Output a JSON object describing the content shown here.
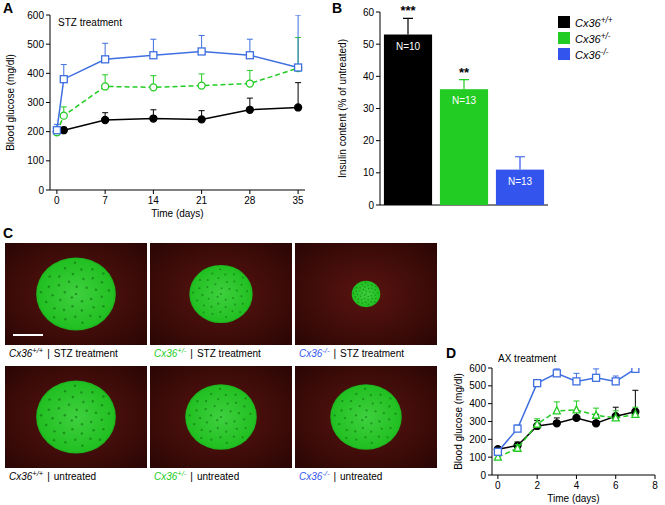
{
  "panel_labels": [
    "A",
    "B",
    "C",
    "D"
  ],
  "chart_data": [
    {
      "type": "line",
      "title": "STZ treatment",
      "x_label": "Time (days)",
      "y_label": "Blood glucose (mg/dl)",
      "x": [
        0,
        1,
        7,
        14,
        21,
        28,
        35
      ],
      "xlim": [
        -1,
        36
      ],
      "xticks": [
        0,
        7,
        14,
        21,
        28,
        35
      ],
      "ylim": [
        0,
        600
      ],
      "yticks": [
        0,
        100,
        200,
        300,
        400,
        500,
        600
      ],
      "series": [
        {
          "color": "#000000",
          "marker": "circle",
          "line_style": "solid",
          "values": [
            200,
            205,
            240,
            245,
            242,
            275,
            283
          ],
          "errors": [
            15,
            10,
            25,
            30,
            30,
            40,
            85
          ]
        },
        {
          "color": "#22cc22",
          "marker": "open-circle",
          "line_style": "dashed",
          "values": [
            198,
            255,
            355,
            352,
            358,
            365,
            418
          ],
          "errors": [
            20,
            30,
            40,
            40,
            40,
            45,
            105
          ]
        },
        {
          "color": "#3f6fe0",
          "marker": "open-square",
          "line_style": "solid",
          "values": [
            205,
            380,
            448,
            462,
            475,
            462,
            420
          ],
          "errors": [
            20,
            50,
            55,
            55,
            55,
            55,
            180
          ]
        }
      ]
    },
    {
      "type": "bar",
      "y_label": "Insulin content (% of untreated)",
      "categories": [
        "Cx36+/+",
        "Cx36+/-",
        "Cx36-/-"
      ],
      "values": [
        53,
        36,
        11
      ],
      "errors": [
        5,
        3,
        4
      ],
      "colors": [
        "#000000",
        "#22cc22",
        "#3355ee"
      ],
      "ylim": [
        0,
        60
      ],
      "yticks": [
        0,
        10,
        20,
        30,
        40,
        50,
        60
      ],
      "legend": "top-right",
      "tick_labels": "y",
      "n_labels": [
        "N=10",
        "N=13",
        "N=13"
      ],
      "significance": [
        "***",
        "**",
        null
      ]
    },
    {
      "type": "line",
      "title": "AX treatment",
      "x_label": "Time (days)",
      "y_label": "Blood glucose (mg/dl)",
      "x": [
        0,
        1,
        2,
        3,
        4,
        5,
        6,
        7
      ],
      "xlim": [
        -0.3,
        8
      ],
      "xticks": [
        0,
        2,
        4,
        6,
        8
      ],
      "ylim": [
        0,
        600
      ],
      "yticks": [
        0,
        100,
        200,
        300,
        400,
        500,
        600
      ],
      "series": [
        {
          "color": "#000000",
          "marker": "circle",
          "line_style": "solid",
          "values": [
            145,
            165,
            275,
            290,
            320,
            290,
            330,
            355
          ],
          "errors": [
            10,
            20,
            30,
            30,
            40,
            50,
            50,
            120
          ]
        },
        {
          "color": "#22cc22",
          "marker": "open-triangle",
          "line_style": "dashed",
          "values": [
            100,
            150,
            285,
            360,
            365,
            335,
            320,
            340
          ],
          "errors": [
            10,
            20,
            30,
            50,
            50,
            40,
            40,
            40
          ]
        },
        {
          "color": "#3f6fe0",
          "marker": "open-square",
          "line_style": "solid",
          "values": [
            130,
            260,
            515,
            570,
            525,
            545,
            525,
            595
          ],
          "errors": [
            15,
            20,
            20,
            25,
            45,
            50,
            30,
            5
          ]
        }
      ]
    }
  ],
  "micrographs": {
    "panels": [
      {
        "genotype": "Cx36+/+",
        "color": "#000000",
        "separator": "|",
        "treatment": "STZ treatment"
      },
      {
        "genotype": "Cx36+/-",
        "color": "#22cc22",
        "separator": "|",
        "treatment": "STZ treatment"
      },
      {
        "genotype": "Cx36-/-",
        "color": "#3355ee",
        "separator": "|",
        "treatment": "STZ treatment"
      },
      {
        "genotype": "Cx36+/+",
        "color": "#000000",
        "separator": "|",
        "treatment": "untreated"
      },
      {
        "genotype": "Cx36+/-",
        "color": "#22cc22",
        "separator": "|",
        "treatment": "untreated"
      },
      {
        "genotype": "Cx36-/-",
        "color": "#3355ee",
        "separator": "|",
        "treatment": "untreated"
      }
    ]
  }
}
